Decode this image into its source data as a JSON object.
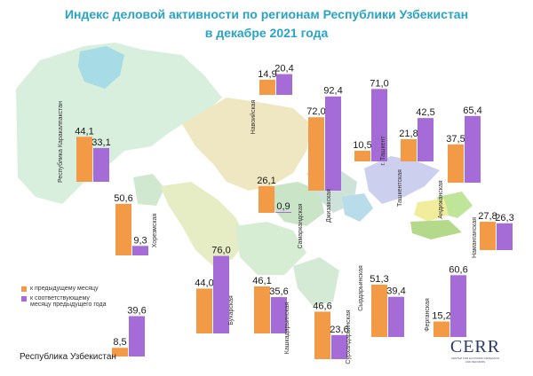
{
  "title_line1": "Индекс деловой активности по регионам Республики Узбекистан",
  "title_line2": "в декабре 2021 года",
  "legend": {
    "prev_month": "к предыдущему месяцу",
    "prev_year": "к соответствующему месяцу предыдущего года"
  },
  "colors": {
    "prev_month": "#f39a46",
    "prev_year": "#a56bd6"
  },
  "logo": {
    "main": "CERR",
    "sub": "CENTER FOR ECONOMIC RESEARCH AND REFORMS"
  },
  "chart_data": {
    "type": "bar",
    "title": "Индекс деловой активности по регионам Республики Узбекистан в декабре 2021 года",
    "series": [
      {
        "name": "к предыдущему месяцу"
      },
      {
        "name": "к соответствующему месяцу предыдущего года"
      }
    ],
    "regions": [
      {
        "name": "Республика Каракалпакстан",
        "values": [
          44.1,
          33.1
        ]
      },
      {
        "name": "Хорезмская",
        "values": [
          50.6,
          9.3
        ]
      },
      {
        "name": "Навоийская",
        "values": [
          14.9,
          20.4
        ]
      },
      {
        "name": "Бухарская",
        "values": [
          44.0,
          76.0
        ]
      },
      {
        "name": "Самаркандская",
        "values": [
          26.1,
          0.9
        ]
      },
      {
        "name": "Джизакская",
        "values": [
          72.0,
          92.4
        ]
      },
      {
        "name": "Кашкадарьинская",
        "values": [
          46.1,
          35.6
        ]
      },
      {
        "name": "Сурхандарьинская",
        "values": [
          46.6,
          23.6
        ]
      },
      {
        "name": "Сырдарьинская",
        "values": [
          51.3,
          39.4
        ]
      },
      {
        "name": "г. Ташкент",
        "values": [
          10.5,
          71.0
        ]
      },
      {
        "name": "Ташкентская",
        "values": [
          21.8,
          42.5
        ]
      },
      {
        "name": "Андижанская",
        "values": [
          37.5,
          65.4
        ]
      },
      {
        "name": "Наманганская",
        "values": [
          27.8,
          26.3
        ]
      },
      {
        "name": "Ферганская",
        "values": [
          15.2,
          60.6
        ]
      },
      {
        "name": "Республика Узбекистан",
        "values": [
          8.5,
          39.6
        ]
      }
    ]
  }
}
